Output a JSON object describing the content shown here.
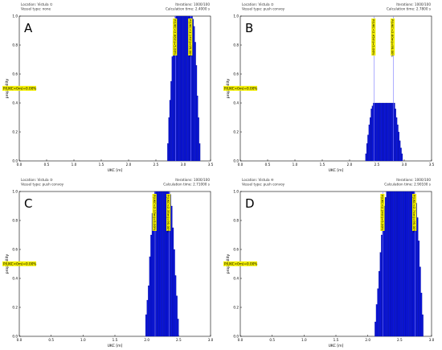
{
  "panels": [
    {
      "letter": "A",
      "meta_left": [
        "Location: Vistula  ①",
        "Vessel type: none"
      ],
      "meta_right": [
        "Iterations: 1000/100",
        "Calculation time: 2.4000 s"
      ],
      "prob_label": "P(UKC<0m)=0.00%",
      "vlabel_1": "P(UKC<2.86m)=5.00%",
      "vlabel_2": "P(UKC<3.14m)=95.00%",
      "chart_data": {
        "type": "bar",
        "xlabel": "UKC [m]",
        "ylabel": "propability",
        "xlim": [
          0.0,
          3.5
        ],
        "ylim": [
          0.0,
          1.0
        ],
        "xticks": [
          "0.0",
          "0.5",
          "1.0",
          "1.5",
          "2.0",
          "2.5",
          "3.0",
          "3.5"
        ],
        "yticks": [
          "0.0",
          "0.2",
          "0.4",
          "0.6",
          "0.8",
          "1.0"
        ],
        "vlines": [
          2.86,
          3.14
        ],
        "lines": [
          {
            "name": "P(UKC<0m)=0.00%",
            "y": 0.5
          },
          {
            "name": "P(UKC<2.86m)=5.00%",
            "x": 2.86
          },
          {
            "name": "P(UKC<3.14m)=95.00%",
            "x": 3.14
          }
        ],
        "x": [
          2.72,
          2.74,
          2.76,
          2.78,
          2.8,
          2.82,
          2.84,
          2.86,
          2.88,
          2.9,
          2.92,
          2.94,
          2.96,
          2.98,
          3.0,
          3.02,
          3.04,
          3.06,
          3.08,
          3.1,
          3.12,
          3.14,
          3.16,
          3.18,
          3.2,
          3.22,
          3.24,
          3.26,
          3.28,
          3.3
        ],
        "values": [
          0.12,
          0.3,
          0.42,
          0.55,
          0.72,
          0.86,
          0.95,
          1.0,
          1.0,
          1.0,
          1.0,
          1.0,
          1.0,
          1.0,
          1.0,
          1.0,
          1.0,
          1.0,
          1.0,
          1.0,
          1.0,
          1.0,
          1.0,
          0.98,
          0.93,
          0.82,
          0.66,
          0.45,
          0.3,
          0.12
        ]
      }
    },
    {
      "letter": "B",
      "meta_left": [
        "Location: Vistula  ②",
        "Vessel type: push convoy"
      ],
      "meta_right": [
        "Iterations: 1000/100",
        "Calculation time: 2.7800 s"
      ],
      "prob_label": "P(UKC<0m)=0.00%",
      "vlabel_1": "P(UKC<2.45m)=5.00%",
      "vlabel_2": "P(UKC<2.80m)=95.00%",
      "chart_data": {
        "type": "bar",
        "xlabel": "UKC [m]",
        "ylabel": "propability",
        "xlim": [
          0.0,
          3.5
        ],
        "ylim": [
          0.0,
          1.0
        ],
        "xticks": [
          "0.0",
          "0.5",
          "1.0",
          "1.5",
          "2.0",
          "2.5",
          "3.0",
          "3.5"
        ],
        "yticks": [
          "0.0",
          "0.2",
          "0.4",
          "0.6",
          "0.8",
          "1.0"
        ],
        "vlines": [
          2.45,
          2.8
        ],
        "lines": [
          {
            "name": "P(UKC<0m)=0.00%",
            "y": 0.5
          },
          {
            "name": "P(UKC<2.45m)=5.00%",
            "x": 2.45
          },
          {
            "name": "P(UKC<2.80m)=95.00%",
            "x": 2.8
          }
        ],
        "x": [
          2.3,
          2.32,
          2.34,
          2.36,
          2.38,
          2.4,
          2.42,
          2.44,
          2.46,
          2.48,
          2.5,
          2.52,
          2.54,
          2.56,
          2.58,
          2.6,
          2.62,
          2.64,
          2.66,
          2.68,
          2.7,
          2.72,
          2.74,
          2.76,
          2.78,
          2.8,
          2.82,
          2.84,
          2.86,
          2.88,
          2.9,
          2.92,
          2.94,
          2.96
        ],
        "values": [
          0.05,
          0.12,
          0.18,
          0.25,
          0.3,
          0.36,
          0.38,
          0.4,
          0.4,
          0.4,
          0.4,
          0.4,
          0.4,
          0.4,
          0.4,
          0.4,
          0.4,
          0.4,
          0.4,
          0.4,
          0.4,
          0.4,
          0.4,
          0.4,
          0.4,
          0.4,
          0.4,
          0.36,
          0.3,
          0.25,
          0.2,
          0.14,
          0.09,
          0.05
        ]
      }
    },
    {
      "letter": "C",
      "meta_left": [
        "Location: Vistula  ③",
        "Vessel type: push convoy"
      ],
      "meta_right": [
        "Iterations: 1000/100",
        "Calculation time: 2.71000 s"
      ],
      "prob_label": "P(UKC<0m)=0.00%",
      "vlabel_1": "P(UKC<2.13m)=5.00%",
      "vlabel_2": "P(UKC<2.35m)=95.00%",
      "chart_data": {
        "type": "bar",
        "xlabel": "UKC [m]",
        "ylabel": "propability",
        "xlim": [
          0.0,
          3.0
        ],
        "ylim": [
          0.0,
          1.0
        ],
        "xticks": [
          "0.0",
          "0.5",
          "1.0",
          "1.5",
          "2.0",
          "2.5",
          "3.0"
        ],
        "yticks": [
          "0.0",
          "0.2",
          "0.4",
          "0.6",
          "0.8",
          "1.0"
        ],
        "vlines": [
          2.13,
          2.35
        ],
        "lines": [
          {
            "name": "P(UKC<0m)=0.00%",
            "y": 0.5
          },
          {
            "name": "P(UKC<2.13m)=5.00%",
            "x": 2.13
          },
          {
            "name": "P(UKC<2.35m)=95.00%",
            "x": 2.35
          }
        ],
        "x": [
          1.99,
          2.01,
          2.03,
          2.05,
          2.07,
          2.09,
          2.11,
          2.13,
          2.15,
          2.17,
          2.19,
          2.21,
          2.23,
          2.25,
          2.27,
          2.29,
          2.31,
          2.33,
          2.35,
          2.37,
          2.39,
          2.41,
          2.43,
          2.45,
          2.47,
          2.49
        ],
        "values": [
          0.15,
          0.25,
          0.35,
          0.55,
          0.7,
          0.85,
          0.95,
          1.0,
          1.0,
          1.0,
          1.0,
          1.0,
          1.0,
          1.0,
          1.0,
          1.0,
          1.0,
          1.0,
          1.0,
          0.98,
          0.9,
          0.75,
          0.6,
          0.42,
          0.28,
          0.12
        ]
      }
    },
    {
      "letter": "D",
      "meta_left": [
        "Location: Vistula  ④",
        "Vessel type: push convoy"
      ],
      "meta_right": [
        "Iterations: 1000/100",
        "Calculation time: 2.90100 s"
      ],
      "prob_label": "P(UKC<0m)=0.00%",
      "vlabel_1": "P(UKC<2.24m)=5.00%",
      "vlabel_2": "P(UKC<2.74m)=95.00%",
      "chart_data": {
        "type": "bar",
        "xlabel": "UKC [m]",
        "ylabel": "propability",
        "xlim": [
          0.0,
          3.0
        ],
        "ylim": [
          0.0,
          1.0
        ],
        "xticks": [
          "0.0",
          "0.5",
          "1.0",
          "1.5",
          "2.0",
          "2.5",
          "3.0"
        ],
        "yticks": [
          "0.0",
          "0.2",
          "0.4",
          "0.6",
          "0.8",
          "1.0"
        ],
        "vlines": [
          2.24,
          2.74
        ],
        "lines": [
          {
            "name": "P(UKC<0m)=0.00%",
            "y": 0.5
          },
          {
            "name": "P(UKC<2.24m)=5.00%",
            "x": 2.24
          },
          {
            "name": "P(UKC<2.74m)=95.00%",
            "x": 2.74
          }
        ],
        "x": [
          2.12,
          2.14,
          2.16,
          2.18,
          2.2,
          2.22,
          2.24,
          2.26,
          2.28,
          2.3,
          2.32,
          2.34,
          2.36,
          2.38,
          2.4,
          2.42,
          2.44,
          2.46,
          2.48,
          2.5,
          2.52,
          2.54,
          2.56,
          2.58,
          2.6,
          2.62,
          2.64,
          2.66,
          2.68,
          2.7,
          2.72,
          2.74,
          2.76,
          2.78,
          2.8,
          2.82,
          2.84,
          2.86
        ],
        "values": [
          0.1,
          0.22,
          0.33,
          0.45,
          0.58,
          0.7,
          0.82,
          0.9,
          0.96,
          1.0,
          1.0,
          1.0,
          1.0,
          1.0,
          1.0,
          1.0,
          1.0,
          1.0,
          1.0,
          1.0,
          1.0,
          1.0,
          1.0,
          1.0,
          1.0,
          1.0,
          1.0,
          1.0,
          1.0,
          1.0,
          1.0,
          0.98,
          0.92,
          0.82,
          0.66,
          0.48,
          0.3,
          0.15
        ]
      }
    }
  ]
}
